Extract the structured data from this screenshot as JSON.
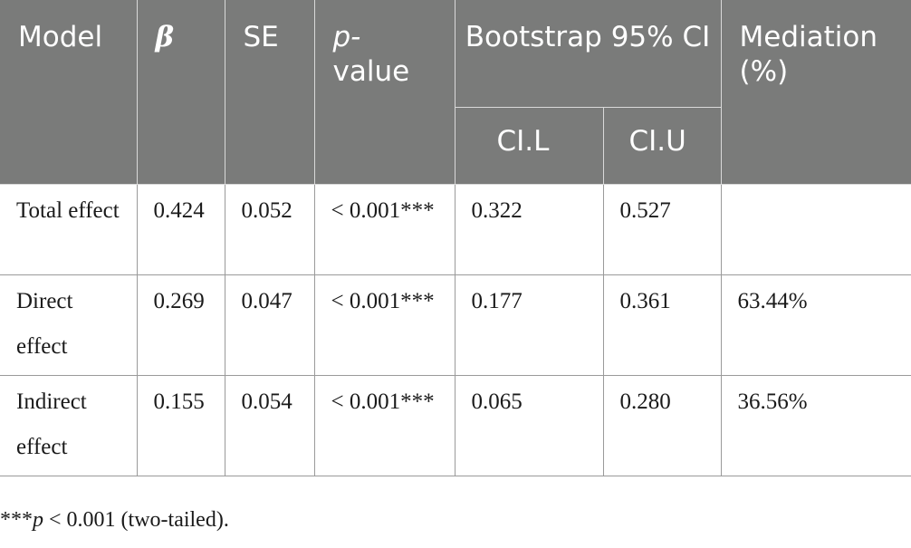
{
  "table": {
    "headers": {
      "model": "Model",
      "beta": "β",
      "se": "SE",
      "p_value_line1": "p-",
      "p_value_line2": "value",
      "bootstrap": "Bootstrap 95% CI",
      "mediation": "Mediation (%)",
      "ci_lower": "CI.L",
      "ci_upper": "CI.U"
    },
    "rows": [
      {
        "model": "Total effect",
        "beta": "0.424",
        "se": "0.052",
        "p": "< 0.001***",
        "ci_l": "0.322",
        "ci_u": "0.527",
        "mediation": ""
      },
      {
        "model": "Direct effect",
        "beta": "0.269",
        "se": "0.047",
        "p": "< 0.001***",
        "ci_l": "0.177",
        "ci_u": "0.361",
        "mediation": "63.44%"
      },
      {
        "model": "Indirect effect",
        "beta": "0.155",
        "se": "0.054",
        "p": "< 0.001***",
        "ci_l": "0.065",
        "ci_u": "0.280",
        "mediation": "36.56%"
      }
    ]
  },
  "footnote": {
    "stars": "***",
    "p": "p",
    "rest": " < 0.001 (two-tailed)."
  },
  "colors": {
    "header_bg": "#7a7b7a",
    "header_text": "#ffffff",
    "grid": "#9a9a9a"
  }
}
